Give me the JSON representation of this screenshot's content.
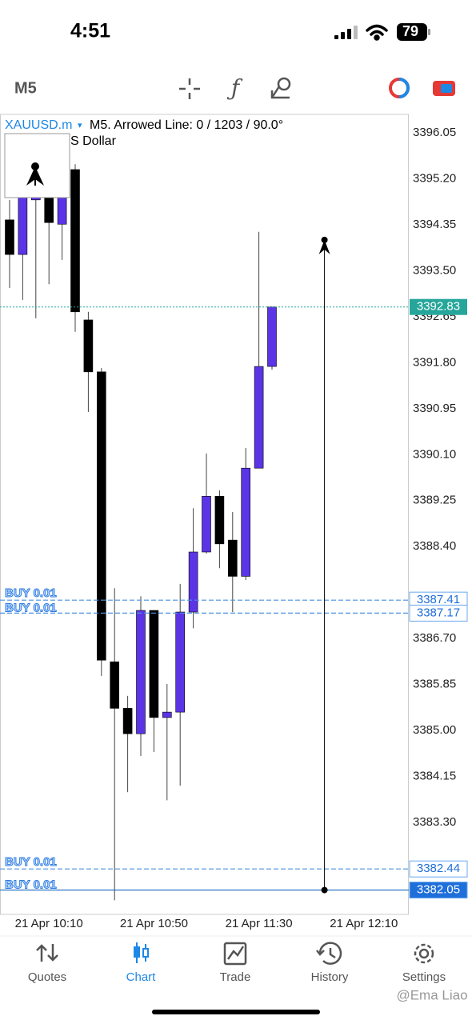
{
  "status_bar": {
    "time": "4:51",
    "battery": "79"
  },
  "toolbar": {
    "timeframe": "M5"
  },
  "chart": {
    "type": "candlestick",
    "symbol": "XAUUSD.m",
    "info": "M5. Arrowed Line: 0 / 1203 / 90.0°",
    "subtitle": "S Dollar",
    "bull_color": "#5b34e6",
    "bear_color": "#000000",
    "ylim": [
      3381.6,
      3396.39
    ],
    "yticks": [
      3396.05,
      {
        "value": 3395.2,
        "label": "3395.20"
      },
      3394.35,
      {
        "value": 3393.5,
        "label": "3393.50"
      },
      3392.65,
      {
        "value": 3391.8,
        "label": "3391.80"
      },
      3390.95,
      {
        "value": 3390.1,
        "label": "3390.10"
      },
      3389.25,
      {
        "value": 3388.4,
        "label": "3388.40"
      },
      {
        "value": 3386.7,
        "label": "3386.70"
      },
      3385.85,
      {
        "value": 3385,
        "label": "3385.00"
      },
      3384.15,
      {
        "value": 3383.3,
        "label": "3383.30"
      }
    ],
    "categories": [
      null,
      null,
      null,
      "21 Apr 10:10",
      null,
      null,
      null,
      null,
      null,
      null,
      null,
      "21 Apr 10:50",
      null,
      null,
      null,
      null,
      null,
      null,
      null,
      "21 Apr 11:30",
      null,
      null,
      null,
      null,
      null,
      null,
      null,
      "21 Apr 12:10"
    ],
    "candles": [
      {
        "open": 3394.44,
        "high": 3394.81,
        "low": 3393.18,
        "close": 3393.8
      },
      {
        "open": 3393.8,
        "high": 3395.18,
        "low": 3392.96,
        "close": 3394.88
      },
      {
        "open": 3394.81,
        "high": 3395.5,
        "low": 3392.62,
        "close": 3394.93
      },
      {
        "open": 3394.88,
        "high": 3395.3,
        "low": 3393.25,
        "close": 3394.39
      },
      {
        "open": 3394.36,
        "high": 3395.25,
        "low": 3393.7,
        "close": 3394.88
      },
      {
        "open": 3395.37,
        "high": 3395.47,
        "low": 3392.37,
        "close": 3392.74
      },
      {
        "open": 3392.59,
        "high": 3392.74,
        "low": 3390.89,
        "close": 3391.63
      },
      {
        "open": 3391.63,
        "high": 3391.7,
        "low": 3386.01,
        "close": 3386.3
      },
      {
        "open": 3386.27,
        "high": 3387.63,
        "low": 3381.86,
        "close": 3385.41
      },
      {
        "open": 3385.41,
        "high": 3385.64,
        "low": 3383.86,
        "close": 3384.94
      },
      {
        "open": 3384.94,
        "high": 3387.48,
        "low": 3384.53,
        "close": 3387.22
      },
      {
        "open": 3387.22,
        "high": 3387.22,
        "low": 3384.6,
        "close": 3385.24
      },
      {
        "open": 3385.24,
        "high": 3385.86,
        "low": 3383.71,
        "close": 3385.34
      },
      {
        "open": 3385.34,
        "high": 3387.71,
        "low": 3383.98,
        "close": 3387.19
      },
      {
        "open": 3387.19,
        "high": 3389.11,
        "low": 3386.89,
        "close": 3388.3
      },
      {
        "open": 3388.3,
        "high": 3390.12,
        "low": 3388.27,
        "close": 3389.33
      },
      {
        "open": 3389.33,
        "high": 3389.44,
        "low": 3388.0,
        "close": 3388.45
      },
      {
        "open": 3388.52,
        "high": 3389.04,
        "low": 3387.19,
        "close": 3387.85
      },
      {
        "open": 3387.85,
        "high": 3390.22,
        "low": 3387.78,
        "close": 3389.85
      },
      {
        "open": 3389.85,
        "high": 3394.22,
        "low": 3389.85,
        "close": 3391.73
      },
      {
        "open": 3391.73,
        "high": 3392.83,
        "low": 3391.67,
        "close": 3392.83
      }
    ],
    "bid": 3392.83,
    "orders": [
      {
        "label": "BUY 0.01",
        "price": 3387.41
      },
      {
        "label": "BUY 0.01",
        "price": 3387.17
      },
      {
        "label": "BUY 0.01",
        "price": 3382.44
      },
      {
        "label": "BUY 0.01",
        "price": 3382.05
      }
    ],
    "arrowed_line": {
      "from": 3382.05,
      "to": 3394.07
    }
  },
  "nav": {
    "items": [
      "Quotes",
      "Chart",
      "Trade",
      "History",
      "Settings"
    ],
    "active": 1
  },
  "watermark": "@Ema Liao"
}
